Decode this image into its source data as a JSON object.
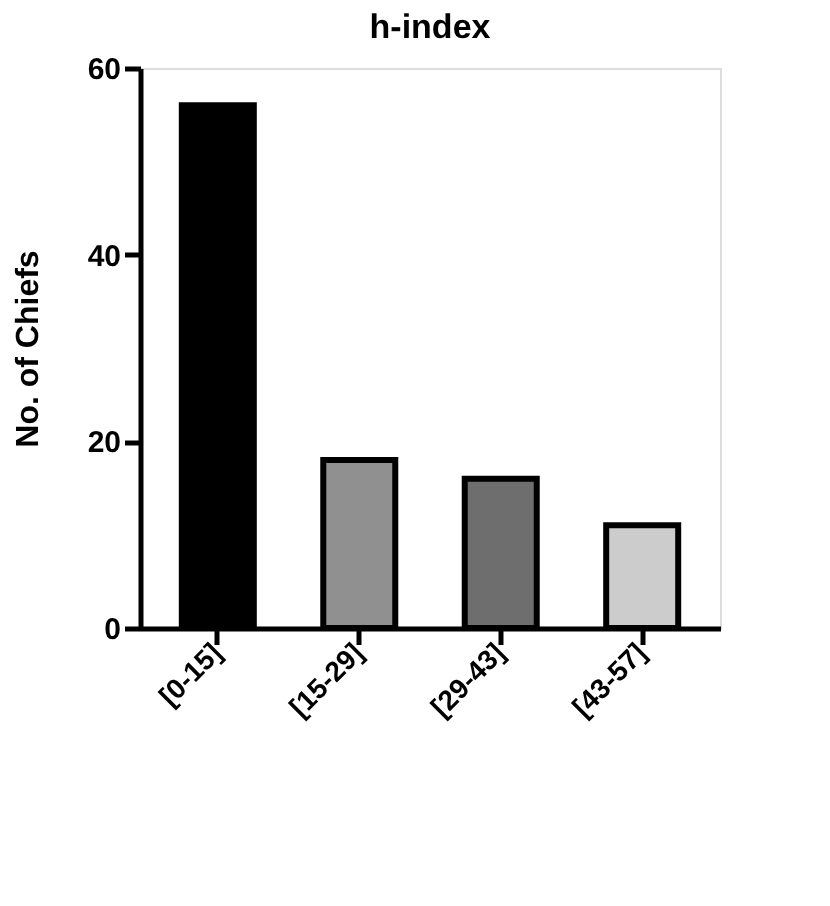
{
  "chart_data": {
    "type": "bar",
    "title": "h-index",
    "ylabel": "No. of Chiefs",
    "categories": [
      "[0-15]",
      "[15-29]",
      "[29-43]",
      "[43-57]"
    ],
    "values": [
      56,
      18,
      16,
      11
    ],
    "colors": [
      "#000000",
      "#909090",
      "#6e6e6e",
      "#cccccc"
    ],
    "ylim": [
      0,
      60
    ],
    "yticks": [
      0,
      20,
      40,
      60
    ],
    "grid": false
  }
}
